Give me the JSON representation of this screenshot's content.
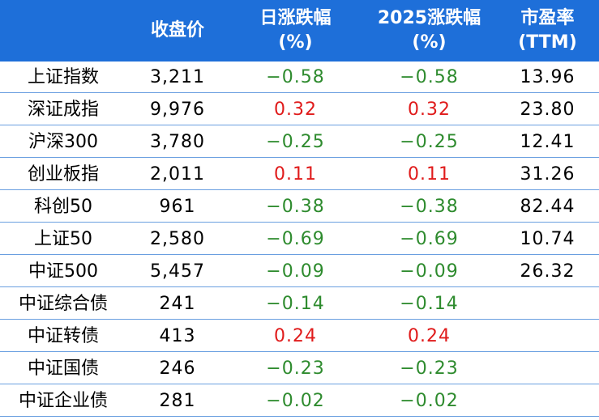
{
  "colors": {
    "header_bg": "#1e6fd9",
    "up": "#e01b1b",
    "down": "#2e8b2e",
    "row_border": "#6a9fe0"
  },
  "header": {
    "close": "收盘价",
    "day_line1": "日涨跌幅",
    "day_line2": "(%)",
    "ytd_line1": "2025涨跌幅",
    "ytd_line2": "(%)",
    "pe_line1": "市盈率",
    "pe_line2": "(TTM)"
  },
  "rows": [
    {
      "name": "上证指数",
      "close": "3,211",
      "day": "−0.58",
      "day_dir": "down",
      "ytd": "−0.58",
      "ytd_dir": "down",
      "pe": "13.96"
    },
    {
      "name": "深证成指",
      "close": "9,976",
      "day": "0.32",
      "day_dir": "up",
      "ytd": "0.32",
      "ytd_dir": "up",
      "pe": "23.80"
    },
    {
      "name": "沪深300",
      "close": "3,780",
      "day": "−0.25",
      "day_dir": "down",
      "ytd": "−0.25",
      "ytd_dir": "down",
      "pe": "12.41"
    },
    {
      "name": "创业板指",
      "close": "2,011",
      "day": "0.11",
      "day_dir": "up",
      "ytd": "0.11",
      "ytd_dir": "up",
      "pe": "31.26"
    },
    {
      "name": "科创50",
      "close": "961",
      "day": "−0.38",
      "day_dir": "down",
      "ytd": "−0.38",
      "ytd_dir": "down",
      "pe": "82.44"
    },
    {
      "name": "上证50",
      "close": "2,580",
      "day": "−0.69",
      "day_dir": "down",
      "ytd": "−0.69",
      "ytd_dir": "down",
      "pe": "10.74"
    },
    {
      "name": "中证500",
      "close": "5,457",
      "day": "−0.09",
      "day_dir": "down",
      "ytd": "−0.09",
      "ytd_dir": "down",
      "pe": "26.32"
    },
    {
      "name": "中证综合债",
      "close": "241",
      "day": "−0.14",
      "day_dir": "down",
      "ytd": "−0.14",
      "ytd_dir": "down",
      "pe": ""
    },
    {
      "name": "中证转债",
      "close": "413",
      "day": "0.24",
      "day_dir": "up",
      "ytd": "0.24",
      "ytd_dir": "up",
      "pe": ""
    },
    {
      "name": "中证国债",
      "close": "246",
      "day": "−0.23",
      "day_dir": "down",
      "ytd": "−0.23",
      "ytd_dir": "down",
      "pe": ""
    },
    {
      "name": "中证企业债",
      "close": "281",
      "day": "−0.02",
      "day_dir": "down",
      "ytd": "−0.02",
      "ytd_dir": "down",
      "pe": ""
    }
  ]
}
